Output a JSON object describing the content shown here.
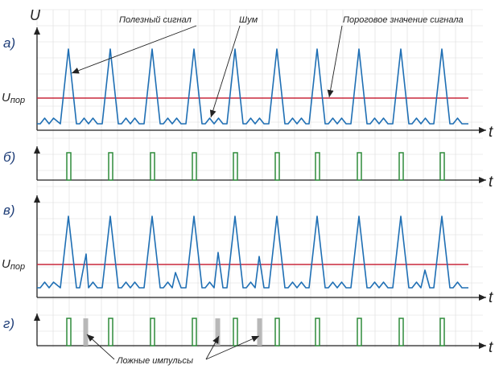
{
  "axis": {
    "u_label": "U",
    "t_label": "t"
  },
  "threshold_label": {
    "main": "U",
    "sub": "пор"
  },
  "panels": [
    {
      "label": "а)"
    },
    {
      "label": "б)"
    },
    {
      "label": "в)"
    },
    {
      "label": "г)"
    }
  ],
  "annotations": {
    "useful_signal": "Полезный сигнал",
    "noise": "Шум",
    "threshold_value": "Пороговое значение сигнала",
    "false_pulses": "Ложные импульсы"
  },
  "colors": {
    "signal": "#1f6fb4",
    "threshold": "#c8283c",
    "pulse": "#2e8b3a",
    "false_pulse": "#b8b8b8",
    "grid": "#dcdcdc",
    "axis": "#222222"
  },
  "chart_data": {
    "type": "line",
    "signal_peaks_count": 10,
    "panel_b_pulses_count": 10,
    "panel_g_pulses_count": 10,
    "panel_g_false_pulses_count": 3
  }
}
